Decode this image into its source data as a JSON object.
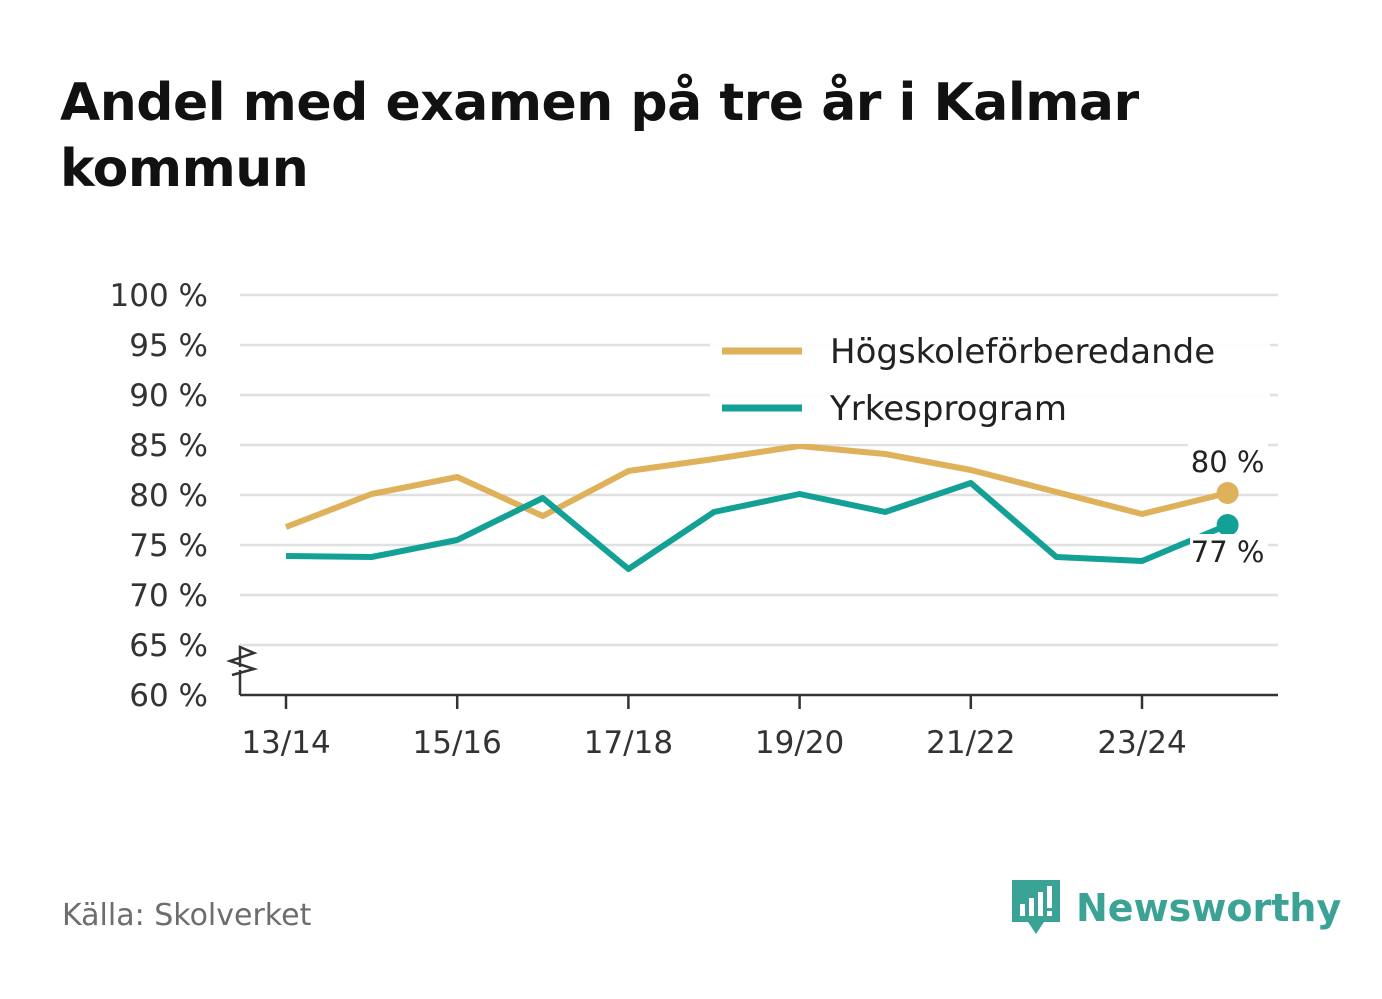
{
  "title": "Andel med examen på tre år i Kalmar kommun",
  "source": "Källa: Skolverket",
  "brand": {
    "name": "Newsworthy"
  },
  "colors": {
    "hogskole": "#dfb15a",
    "yrkes": "#13a196",
    "grid": "#e0e0e0",
    "axis": "#333333",
    "text": "#333333",
    "brand": "#3aa395"
  },
  "chart_data": {
    "type": "line",
    "title": "Andel med examen på tre år i Kalmar kommun",
    "xlabel": "",
    "ylabel": "",
    "x": [
      "13/14",
      "14/15",
      "15/16",
      "16/17",
      "17/18",
      "18/19",
      "19/20",
      "20/21",
      "21/22",
      "22/23",
      "23/24",
      "24/25"
    ],
    "x_tick_labels": [
      "13/14",
      "15/16",
      "17/18",
      "19/20",
      "21/22",
      "23/24"
    ],
    "y_ticks": [
      60,
      65,
      70,
      75,
      80,
      85,
      90,
      95,
      100
    ],
    "y_tick_labels": [
      "60 %",
      "65 %",
      "70 %",
      "75 %",
      "80 %",
      "85 %",
      "90 %",
      "95 %",
      "100 %"
    ],
    "ylim": [
      60,
      100
    ],
    "y_axis_break": true,
    "grid": true,
    "legend_position": "top-right",
    "series": [
      {
        "name": "Högskoleförberedande",
        "color": "#dfb15a",
        "values": [
          76.8,
          80.1,
          81.8,
          77.9,
          82.4,
          83.6,
          84.9,
          84.1,
          82.5,
          80.3,
          78.1,
          80.2
        ],
        "end_label": "80 %"
      },
      {
        "name": "Yrkesprogram",
        "color": "#13a196",
        "values": [
          73.9,
          73.8,
          75.5,
          79.7,
          72.6,
          78.3,
          80.1,
          78.3,
          81.2,
          73.8,
          73.4,
          77.0
        ],
        "end_label": "77 %"
      }
    ]
  }
}
